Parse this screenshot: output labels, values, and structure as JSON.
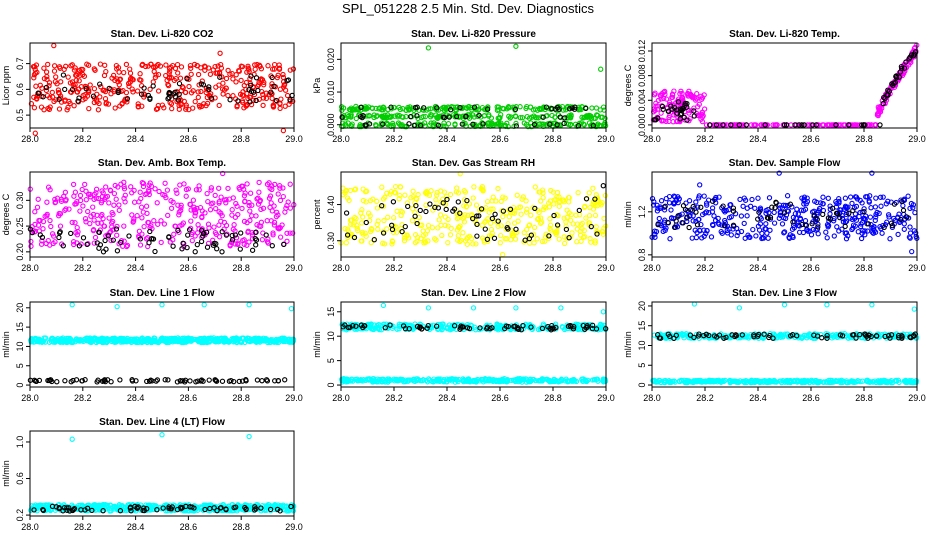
{
  "title": "SPL_051228  2.5 Min. Std. Dev. Diagnostics",
  "chart_data": [
    {
      "type": "scatter",
      "title": "Stan. Dev. Li-820 CO2",
      "xlabel": "",
      "ylabel": "Licor ppm",
      "x_ticks": [
        "28.0",
        "28.2",
        "28.4",
        "28.6",
        "28.8",
        "29.0"
      ],
      "y_ticks": [
        "0.5",
        "0.6",
        "0.7"
      ],
      "xlim": [
        28.0,
        29.0
      ],
      "ylim": [
        0.45,
        0.78
      ],
      "ytick_values": [
        0.5,
        0.6,
        0.7
      ],
      "series": [
        {
          "name": "red",
          "color": "#ff0000",
          "band": [
            0.52,
            0.7
          ],
          "n": 420,
          "outliers": [
            [
              28.09,
              0.77
            ],
            [
              28.02,
              0.43
            ],
            [
              28.96,
              0.44
            ],
            [
              28.72,
              0.74
            ]
          ]
        },
        {
          "name": "black",
          "color": "#000000",
          "band": [
            0.55,
            0.66
          ],
          "n": 60,
          "outliers": []
        }
      ]
    },
    {
      "type": "scatter",
      "title": "Stan. Dev. Li-820 Pressure",
      "xlabel": "",
      "ylabel": "kPa",
      "x_ticks": [
        "28.0",
        "28.2",
        "28.4",
        "28.6",
        "28.8",
        "29.0"
      ],
      "y_ticks": [
        "0.000",
        "0.010",
        "0.020"
      ],
      "xlim": [
        28.0,
        29.0
      ],
      "ylim": [
        -0.001,
        0.025
      ],
      "ytick_values": [
        0.0,
        0.01,
        0.02
      ],
      "series": [
        {
          "name": "green",
          "color": "#00cc00",
          "levels": [
            0.0,
            0.0025,
            0.005
          ],
          "jitter": 0.0006,
          "n": 450,
          "outliers": [
            [
              28.33,
              0.0235
            ],
            [
              28.66,
              0.024
            ],
            [
              28.98,
              0.017
            ]
          ]
        },
        {
          "name": "black",
          "color": "#000000",
          "levels": [
            0.0,
            0.0025,
            0.005
          ],
          "jitter": 0.0004,
          "n": 55,
          "outliers": []
        }
      ]
    },
    {
      "type": "scatter",
      "title": "Stan. Dev. Li-820 Temp.",
      "xlabel": "",
      "ylabel": "degrees C",
      "x_ticks": [
        "28.0",
        "28.2",
        "28.4",
        "28.6",
        "28.8",
        "29.0"
      ],
      "y_ticks": [
        "0.000",
        "0.004",
        "0.008",
        "0.012"
      ],
      "xlim": [
        28.0,
        29.0
      ],
      "ylim": [
        -0.0005,
        0.0133
      ],
      "ytick_values": [
        0.0,
        0.004,
        0.008,
        0.012
      ],
      "series": [
        {
          "name": "magenta",
          "color": "#ff00ff",
          "segments": [
            [
              28.0,
              28.2,
              0.0005,
              0.0055
            ],
            [
              28.2,
              28.85,
              0.0,
              0.0
            ],
            [
              28.85,
              29.0,
              0.002,
              0.0125
            ]
          ],
          "n": 340,
          "outliers": []
        },
        {
          "name": "black",
          "color": "#000000",
          "segments": [
            [
              28.0,
              28.16,
              0.0005,
              0.004
            ],
            [
              28.16,
              28.87,
              0.0,
              0.0
            ],
            [
              28.87,
              29.0,
              0.004,
              0.0128
            ]
          ],
          "n": 75,
          "outliers": []
        }
      ]
    },
    {
      "type": "scatter",
      "title": "Stan. Dev. Amb. Box Temp.",
      "xlabel": "",
      "ylabel": "degrees C",
      "x_ticks": [
        "28.0",
        "28.2",
        "28.4",
        "28.6",
        "28.8",
        "29.0"
      ],
      "y_ticks": [
        "0.20",
        "0.25",
        "0.30"
      ],
      "xlim": [
        28.0,
        29.0
      ],
      "ylim": [
        0.19,
        0.355
      ],
      "ytick_values": [
        0.2,
        0.25,
        0.3
      ],
      "series": [
        {
          "name": "magenta",
          "color": "#ff00ff",
          "band": [
            0.21,
            0.335
          ],
          "n": 420,
          "outliers": [
            [
              28.73,
              0.352
            ]
          ]
        },
        {
          "name": "black",
          "color": "#000000",
          "band": [
            0.2,
            0.245
          ],
          "n": 70,
          "outliers": []
        }
      ]
    },
    {
      "type": "scatter",
      "title": "Stan. Dev. Gas Stream RH",
      "xlabel": "",
      "ylabel": "percent",
      "x_ticks": [
        "28.0",
        "28.2",
        "28.4",
        "28.6",
        "28.8",
        "29.0"
      ],
      "y_ticks": [
        "0.30",
        "0.40"
      ],
      "xlim": [
        28.0,
        29.0
      ],
      "ylim": [
        0.255,
        0.49
      ],
      "ytick_values": [
        0.3,
        0.4
      ],
      "series": [
        {
          "name": "yellow",
          "color": "#ffff00",
          "band": [
            0.29,
            0.45
          ],
          "n": 420,
          "outliers": [
            [
              28.45,
              0.485
            ],
            [
              28.61,
              0.262
            ]
          ]
        },
        {
          "name": "black",
          "color": "#000000",
          "band": [
            0.3,
            0.42
          ],
          "n": 60,
          "outliers": [
            [
              28.99,
              0.452
            ]
          ]
        }
      ]
    },
    {
      "type": "scatter",
      "title": "Stan. Dev. Sample Flow",
      "xlabel": "",
      "ylabel": "ml/min",
      "x_ticks": [
        "28.0",
        "28.2",
        "28.4",
        "28.6",
        "28.8",
        "29.0"
      ],
      "y_ticks": [
        "0.8",
        "1.2"
      ],
      "xlim": [
        28.0,
        29.0
      ],
      "ylim": [
        0.78,
        1.57
      ],
      "ytick_values": [
        0.8,
        1.2
      ],
      "series": [
        {
          "name": "blue",
          "color": "#0000ff",
          "band": [
            0.95,
            1.35
          ],
          "n": 420,
          "outliers": [
            [
              28.18,
              1.45
            ],
            [
              28.48,
              1.56
            ],
            [
              28.83,
              1.56
            ],
            [
              28.98,
              0.83
            ]
          ]
        },
        {
          "name": "black",
          "color": "#000000",
          "band": [
            1.05,
            1.3
          ],
          "n": 60,
          "outliers": []
        }
      ]
    },
    {
      "type": "scatter",
      "title": "Stan. Dev. Line 1 Flow",
      "xlabel": "",
      "ylabel": "ml/min",
      "x_ticks": [
        "28.0",
        "28.2",
        "28.4",
        "28.6",
        "28.8",
        "29.0"
      ],
      "y_ticks": [
        "0",
        "5",
        "10",
        "15",
        "20"
      ],
      "xlim": [
        28.0,
        29.0
      ],
      "ylim": [
        -0.5,
        21.5
      ],
      "ytick_values": [
        0,
        5,
        10,
        15,
        20
      ],
      "series": [
        {
          "name": "cyan",
          "color": "#00ffff",
          "band": [
            11.0,
            12.2
          ],
          "n": 520,
          "outliers": [
            [
              28.16,
              20.8
            ],
            [
              28.33,
              20.3
            ],
            [
              28.5,
              20.8
            ],
            [
              28.66,
              20.8
            ],
            [
              28.83,
              20.8
            ],
            [
              28.99,
              19.8
            ]
          ]
        },
        {
          "name": "black",
          "color": "#000000",
          "band": [
            0.8,
            1.4
          ],
          "n": 70,
          "outliers": []
        }
      ]
    },
    {
      "type": "scatter",
      "title": "Stan. Dev. Line 2 Flow",
      "xlabel": "",
      "ylabel": "ml/min",
      "x_ticks": [
        "28.0",
        "28.2",
        "28.4",
        "28.6",
        "28.8",
        "29.0"
      ],
      "y_ticks": [
        "0",
        "5",
        "10",
        "15"
      ],
      "xlim": [
        28.0,
        29.0
      ],
      "ylim": [
        -0.4,
        17.0
      ],
      "ytick_values": [
        0,
        5,
        10,
        15
      ],
      "series": [
        {
          "name": "cyan-high",
          "color": "#00ffff",
          "band": [
            11.3,
            12.5
          ],
          "n": 320,
          "outliers": [
            [
              28.16,
              16.3
            ],
            [
              28.33,
              15.8
            ],
            [
              28.5,
              15.8
            ],
            [
              28.66,
              15.8
            ],
            [
              28.83,
              15.8
            ],
            [
              28.99,
              15.0
            ]
          ]
        },
        {
          "name": "cyan-low",
          "color": "#00ffff",
          "band": [
            0.6,
            1.3
          ],
          "n": 320,
          "outliers": []
        },
        {
          "name": "black",
          "color": "#000000",
          "band": [
            11.3,
            12.3
          ],
          "n": 70,
          "outliers": []
        }
      ]
    },
    {
      "type": "scatter",
      "title": "Stan. Dev. Line 3 Flow",
      "xlabel": "",
      "ylabel": "ml/min",
      "x_ticks": [
        "28.0",
        "28.2",
        "28.4",
        "28.6",
        "28.8",
        "29.0"
      ],
      "y_ticks": [
        "0",
        "5",
        "10",
        "15",
        "20"
      ],
      "xlim": [
        28.0,
        29.0
      ],
      "ylim": [
        -0.5,
        21.0
      ],
      "ytick_values": [
        0,
        5,
        10,
        15,
        20
      ],
      "series": [
        {
          "name": "cyan-high",
          "color": "#00ffff",
          "band": [
            11.8,
            13.0
          ],
          "n": 300,
          "outliers": [
            [
              28.16,
              20.5
            ],
            [
              28.33,
              19.5
            ],
            [
              28.5,
              20.3
            ],
            [
              28.66,
              20.3
            ],
            [
              28.83,
              20.3
            ],
            [
              28.99,
              19.2
            ]
          ]
        },
        {
          "name": "cyan-low",
          "color": "#00ffff",
          "band": [
            0.6,
            1.2
          ],
          "n": 320,
          "outliers": []
        },
        {
          "name": "black",
          "color": "#000000",
          "band": [
            11.8,
            12.9
          ],
          "n": 70,
          "outliers": []
        }
      ]
    },
    {
      "type": "scatter",
      "title": "Stan. Dev. Line 4 (LT) Flow",
      "xlabel": "",
      "ylabel": "ml/min",
      "x_ticks": [
        "28.0",
        "28.2",
        "28.4",
        "28.6",
        "28.8",
        "29.0"
      ],
      "y_ticks": [
        "0.2",
        "0.6",
        "1.0"
      ],
      "xlim": [
        28.0,
        29.0
      ],
      "ylim": [
        0.19,
        1.12
      ],
      "ytick_values": [
        0.2,
        0.6,
        1.0
      ],
      "series": [
        {
          "name": "cyan",
          "color": "#00ffff",
          "band": [
            0.245,
            0.315
          ],
          "n": 500,
          "outliers": [
            [
              28.16,
              1.03
            ],
            [
              28.5,
              1.08
            ],
            [
              28.83,
              1.06
            ]
          ]
        },
        {
          "name": "black",
          "color": "#000000",
          "band": [
            0.245,
            0.295
          ],
          "n": 70,
          "outliers": []
        }
      ]
    }
  ]
}
